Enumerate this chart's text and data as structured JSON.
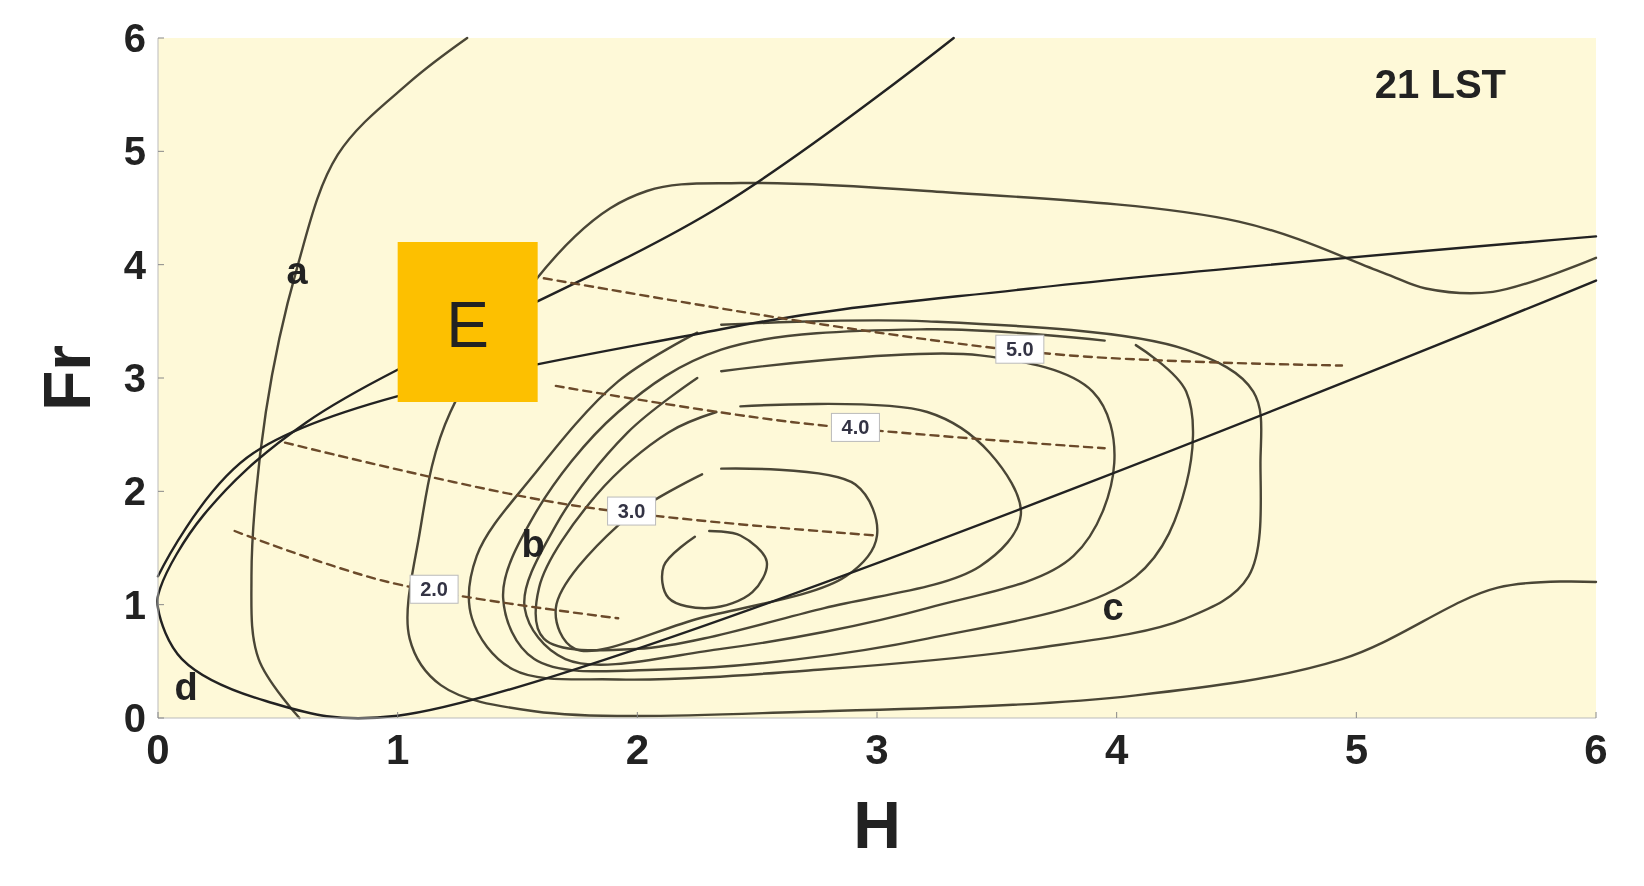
{
  "chart_data": {
    "type": "line",
    "title": "21 LST",
    "xlabel": "H",
    "ylabel": "Fr",
    "xlim": [
      0,
      6
    ],
    "ylim": [
      0,
      6
    ],
    "xticks": [
      0,
      1,
      2,
      3,
      4,
      5,
      6
    ],
    "yticks": [
      0,
      1,
      2,
      3,
      4,
      5,
      6
    ],
    "grid": false,
    "annotations": [
      {
        "text": "a",
        "x": 0.58,
        "y": 3.95
      },
      "b",
      "c",
      "d",
      "E"
    ],
    "series": [
      {
        "color": "#4a4636",
        "x": [
          1.29,
          1.05,
          0.75,
          0.58,
          0.45,
          0.39,
          0.42,
          0.59
        ],
        "values": [
          6.0,
          5.61,
          4.97,
          3.97,
          2.7,
          1.25,
          0.52,
          0.0
        ]
      },
      {
        "color": "#4a4636",
        "x": [
          6.0,
          5.57,
          5.29,
          5.11,
          4.51,
          3.21,
          2.43,
          2.04,
          1.74,
          1.22,
          1.09,
          1.05,
          1.18,
          1.57,
          2.78,
          4.08,
          4.94,
          5.59,
          6.0
        ],
        "values": [
          4.06,
          3.76,
          3.79,
          3.93,
          4.38,
          4.65,
          4.72,
          4.65,
          4.25,
          2.7,
          1.61,
          0.7,
          0.29,
          0.06,
          0.06,
          0.2,
          0.52,
          1.15,
          1.2
        ]
      },
      {
        "color": "#4a4636",
        "x": [
          2.35,
          3.21,
          4.29,
          4.57,
          4.6,
          4.55,
          4.29,
          3.64,
          2.78,
          1.92,
          1.48,
          1.31,
          1.33,
          1.57,
          1.92,
          2.25
        ],
        "values": [
          3.47,
          3.5,
          3.25,
          2.88,
          2.25,
          1.25,
          0.88,
          0.61,
          0.43,
          0.34,
          0.43,
          0.88,
          1.43,
          2.15,
          2.97,
          3.4
        ]
      },
      {
        "color": "#4a4636",
        "x": [
          4.08,
          4.29,
          4.29,
          4.08,
          3.21,
          2.13,
          1.57,
          1.44,
          1.57,
          1.92,
          2.35,
          3.21,
          3.95
        ],
        "values": [
          3.29,
          2.88,
          2.06,
          1.25,
          0.7,
          0.43,
          0.52,
          1.06,
          1.79,
          2.7,
          3.25,
          3.43,
          3.33
        ]
      },
      {
        "color": "#4a4636",
        "x": [
          2.35,
          3.43,
          3.9,
          3.99,
          3.82,
          3.21,
          2.35,
          1.7,
          1.53,
          1.66,
          1.96,
          2.25
        ],
        "values": [
          3.06,
          3.2,
          2.88,
          2.25,
          1.43,
          0.97,
          0.61,
          0.52,
          0.97,
          1.7,
          2.52,
          3.0
        ]
      },
      {
        "color": "#4a4636",
        "x": [
          2.43,
          3.21,
          3.47,
          3.6,
          3.43,
          2.78,
          2.0,
          1.61,
          1.59,
          1.83,
          2.13,
          2.33
        ],
        "values": [
          2.75,
          2.7,
          2.34,
          1.79,
          1.34,
          0.97,
          0.61,
          0.7,
          1.15,
          1.97,
          2.52,
          2.7
        ]
      },
      {
        "color": "#4a4636",
        "x": [
          2.35,
          2.91,
          3.0,
          2.87,
          2.26,
          1.74,
          1.66,
          1.92,
          2.27
        ],
        "values": [
          2.2,
          2.06,
          1.61,
          1.25,
          0.88,
          0.61,
          0.97,
          1.7,
          2.15
        ]
      },
      {
        "color": "#4a4636",
        "x": [
          2.3,
          2.43,
          2.54,
          2.48,
          2.3,
          2.13,
          2.11,
          2.24
        ],
        "values": [
          1.65,
          1.61,
          1.38,
          1.11,
          0.97,
          1.06,
          1.34,
          1.6
        ]
      },
      {
        "color": "#222222",
        "x": [
          3.32,
          2.35,
          0.62,
          0.19,
          0.01,
          0.0,
          0.1,
          0.45,
          1.0,
          6.0
        ],
        "values": [
          6.0,
          4.52,
          2.61,
          1.79,
          1.15,
          0.97,
          0.52,
          0.15,
          0.02,
          3.86
        ]
      },
      {
        "color": "#222222",
        "x": [
          0.0,
          0.4,
          2.35,
          3.64,
          6.0
        ],
        "values": [
          1.25,
          2.34,
          3.43,
          3.79,
          4.25
        ]
      },
      {
        "name": "2.0",
        "color": "#6b4a2a",
        "line_style": "dashed",
        "x": [
          0.32,
          0.96,
          1.92
        ],
        "values": [
          1.65,
          1.2,
          0.88
        ]
      },
      {
        "name": "3.0",
        "color": "#6b4a2a",
        "line_style": "dashed",
        "x": [
          0.53,
          1.72,
          3.0
        ],
        "values": [
          2.43,
          1.88,
          1.61
        ]
      },
      {
        "name": "4.0",
        "color": "#6b4a2a",
        "line_style": "dashed",
        "x": [
          1.66,
          2.65,
          3.95
        ],
        "values": [
          2.93,
          2.61,
          2.38
        ]
      },
      {
        "name": "5.0",
        "color": "#6b4a2a",
        "line_style": "dashed",
        "x": [
          1.61,
          2.78,
          3.8,
          4.94
        ],
        "values": [
          3.88,
          3.47,
          3.2,
          3.11
        ]
      }
    ]
  }
}
